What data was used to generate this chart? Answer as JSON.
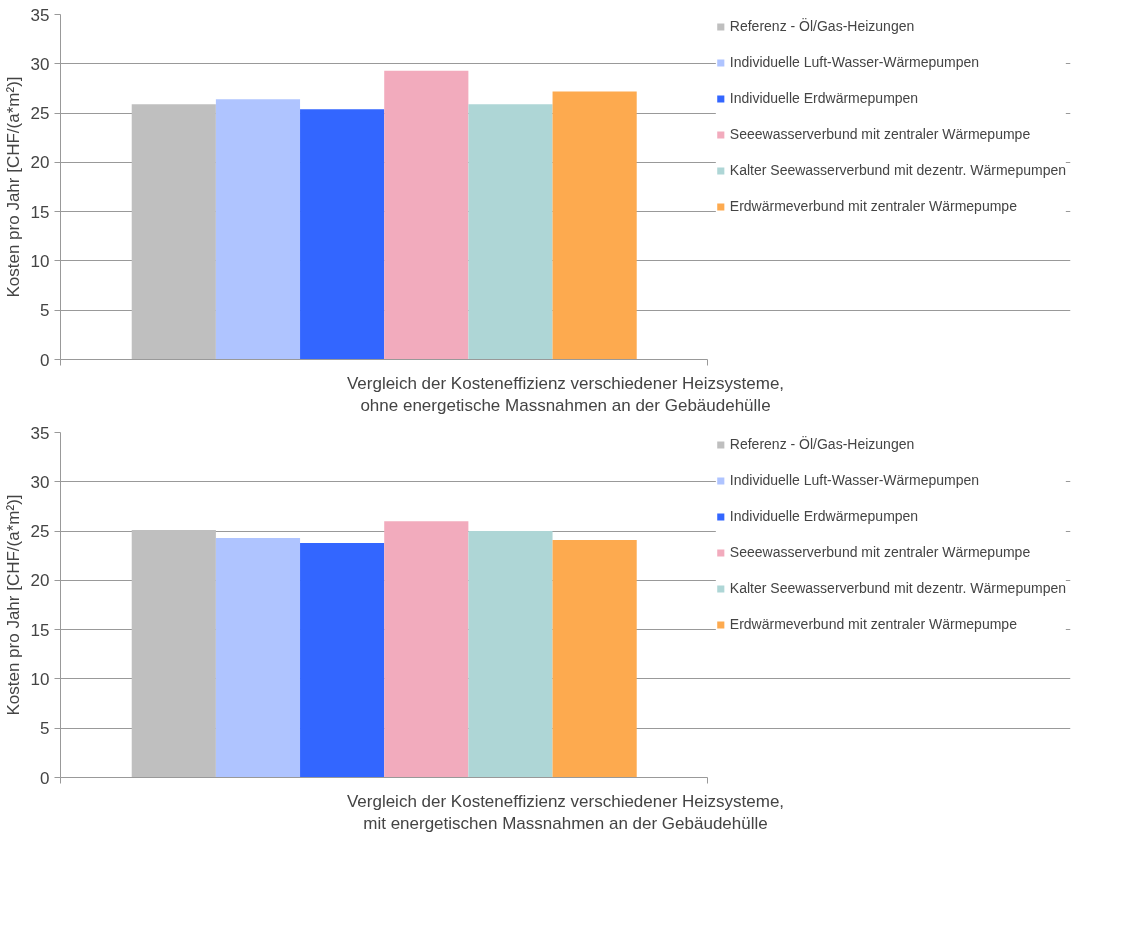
{
  "chart_data": [
    {
      "type": "bar",
      "categories": [
        null
      ],
      "xlabel": "Vergleich der Kosteneffizienz verschiedener Heizsysteme, ohne energetische Massnahmen an der Gebäudehülle",
      "ylabel": "Kosten pro Jahr [CHF/(a*m²)]",
      "ylim": [
        0,
        35
      ],
      "yticks": [
        0,
        5,
        10,
        15,
        20,
        25,
        30,
        35
      ],
      "grid": "y",
      "legend": "right",
      "series": [
        {
          "name": "Referenz - Öl/Gas-Heizungen",
          "color": "#bfbfbf",
          "values": [
            25.9
          ]
        },
        {
          "name": "Individuelle Luft-Wasser-Wärmepumpen",
          "color": "#afc4ff",
          "values": [
            26.4
          ]
        },
        {
          "name": "Individuelle Erdwärmepumpen",
          "color": "#3366ff",
          "values": [
            25.4
          ]
        },
        {
          "name": "Seeewasserverbund mit zentraler Wärmepumpe",
          "color": "#f2abbd",
          "values": [
            29.3
          ]
        },
        {
          "name": "Kalter Seewasserverbund mit dezentr. Wärmepumpen",
          "color": "#aed6d6",
          "values": [
            25.9
          ]
        },
        {
          "name": "Erdwärmeverbund mit zentraler Wärmepumpe",
          "color": "#fdaa4f",
          "values": [
            27.2
          ]
        }
      ]
    },
    {
      "type": "bar",
      "categories": [
        null
      ],
      "xlabel": "Vergleich der Kosteneffizienz verschiedener Heizsysteme, mit energetischen Massnahmen an der Gebäudehülle",
      "ylabel": "Kosten pro Jahr [CHF/(a*m²)]",
      "ylim": [
        0,
        35
      ],
      "yticks": [
        0,
        5,
        10,
        15,
        20,
        25,
        30,
        35
      ],
      "grid": "y",
      "legend": "right",
      "series": [
        {
          "name": "Referenz - Öl/Gas-Heizungen",
          "color": "#bfbfbf",
          "values": [
            25.1
          ]
        },
        {
          "name": "Individuelle Luft-Wasser-Wärmepumpen",
          "color": "#afc4ff",
          "values": [
            24.3
          ]
        },
        {
          "name": "Individuelle Erdwärmepumpen",
          "color": "#3366ff",
          "values": [
            23.8
          ]
        },
        {
          "name": "Seeewasserverbund mit zentraler Wärmepumpe",
          "color": "#f2abbd",
          "values": [
            26.0
          ]
        },
        {
          "name": "Kalter Seewasserverbund mit dezentr. Wärmepumpen",
          "color": "#aed6d6",
          "values": [
            25.0
          ]
        },
        {
          "name": "Erdwärmeverbund mit zentraler Wärmepumpe",
          "color": "#fdaa4f",
          "values": [
            24.1
          ]
        }
      ]
    }
  ]
}
